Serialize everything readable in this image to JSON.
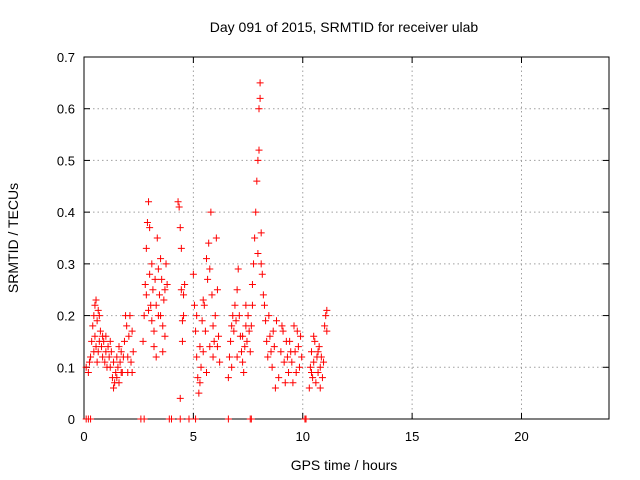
{
  "chart_data": {
    "type": "scatter",
    "title": "Day 091 of 2015, SRMTID for receiver ulab",
    "xlabel": "GPS time / hours",
    "ylabel": "SRMTID / TECUs",
    "xlim": [
      0,
      24
    ],
    "ylim": [
      0,
      0.7
    ],
    "xticks": [
      0,
      5,
      10,
      15,
      20
    ],
    "xtick_labels": [
      "0",
      "5",
      "10",
      "15",
      "20"
    ],
    "yticks": [
      0,
      0.1,
      0.2,
      0.3,
      0.4,
      0.5,
      0.6,
      0.7
    ],
    "ytick_labels": [
      "0",
      "0.1",
      "0.2",
      "0.3",
      "0.4",
      "0.5",
      "0.6",
      "0.7"
    ],
    "grid": true,
    "marker": "+",
    "color": "#ff0000",
    "series": [
      {
        "name": "SRMTID",
        "points": [
          [
            0.1,
            0.0
          ],
          [
            0.2,
            0.0
          ],
          [
            0.3,
            0.0
          ],
          [
            2.6,
            0.0
          ],
          [
            2.75,
            0.0
          ],
          [
            3.9,
            0.0
          ],
          [
            4.0,
            0.0
          ],
          [
            4.4,
            0.0
          ],
          [
            4.8,
            0.0
          ],
          [
            5.1,
            0.0
          ],
          [
            6.6,
            0.0
          ],
          [
            7.6,
            0.0
          ],
          [
            7.65,
            0.0
          ],
          [
            10.1,
            0.0
          ],
          [
            10.15,
            0.0
          ],
          [
            0.1,
            0.1
          ],
          [
            0.2,
            0.09
          ],
          [
            0.3,
            0.12
          ],
          [
            0.35,
            0.15
          ],
          [
            0.4,
            0.18
          ],
          [
            0.45,
            0.2
          ],
          [
            0.5,
            0.22
          ],
          [
            0.5,
            0.16
          ],
          [
            0.55,
            0.14
          ],
          [
            0.6,
            0.19
          ],
          [
            0.6,
            0.11
          ],
          [
            0.65,
            0.13
          ],
          [
            0.7,
            0.15
          ],
          [
            0.7,
            0.2
          ],
          [
            0.75,
            0.17
          ],
          [
            0.8,
            0.14
          ],
          [
            0.85,
            0.12
          ],
          [
            0.9,
            0.15
          ],
          [
            0.95,
            0.11
          ],
          [
            1.0,
            0.13
          ],
          [
            1.0,
            0.16
          ],
          [
            1.05,
            0.1
          ],
          [
            1.1,
            0.14
          ],
          [
            1.15,
            0.12
          ],
          [
            1.2,
            0.1
          ],
          [
            1.25,
            0.13
          ],
          [
            1.3,
            0.08
          ],
          [
            1.35,
            0.11
          ],
          [
            1.4,
            0.07
          ],
          [
            1.45,
            0.09
          ],
          [
            1.5,
            0.12
          ],
          [
            1.55,
            0.1
          ],
          [
            1.6,
            0.14
          ],
          [
            1.65,
            0.11
          ],
          [
            1.7,
            0.13
          ],
          [
            1.75,
            0.09
          ],
          [
            1.8,
            0.12
          ],
          [
            1.85,
            0.15
          ],
          [
            1.9,
            0.2
          ],
          [
            1.95,
            0.18
          ],
          [
            2.0,
            0.12
          ],
          [
            2.05,
            0.16
          ],
          [
            2.1,
            0.2
          ],
          [
            2.15,
            0.11
          ],
          [
            2.2,
            0.09
          ],
          [
            2.25,
            0.13
          ],
          [
            1.35,
            0.06
          ],
          [
            1.5,
            0.08
          ],
          [
            1.7,
            0.09
          ],
          [
            0.55,
            0.23
          ],
          [
            0.65,
            0.21
          ],
          [
            2.7,
            0.15
          ],
          [
            2.75,
            0.2
          ],
          [
            2.8,
            0.26
          ],
          [
            2.85,
            0.33
          ],
          [
            2.9,
            0.38
          ],
          [
            2.95,
            0.42
          ],
          [
            3.0,
            0.37
          ],
          [
            3.0,
            0.28
          ],
          [
            3.05,
            0.22
          ],
          [
            3.1,
            0.3
          ],
          [
            3.1,
            0.19
          ],
          [
            3.15,
            0.25
          ],
          [
            3.2,
            0.17
          ],
          [
            3.25,
            0.27
          ],
          [
            3.3,
            0.22
          ],
          [
            3.35,
            0.35
          ],
          [
            3.4,
            0.29
          ],
          [
            3.45,
            0.24
          ],
          [
            3.5,
            0.31
          ],
          [
            3.5,
            0.2
          ],
          [
            3.55,
            0.27
          ],
          [
            3.6,
            0.18
          ],
          [
            3.65,
            0.23
          ],
          [
            3.7,
            0.16
          ],
          [
            3.75,
            0.3
          ],
          [
            3.8,
            0.26
          ],
          [
            2.85,
            0.24
          ],
          [
            2.95,
            0.21
          ],
          [
            3.2,
            0.14
          ],
          [
            3.6,
            0.13
          ],
          [
            3.3,
            0.12
          ],
          [
            4.3,
            0.42
          ],
          [
            4.35,
            0.41
          ],
          [
            4.4,
            0.37
          ],
          [
            4.45,
            0.33
          ],
          [
            4.45,
            0.25
          ],
          [
            4.5,
            0.19
          ],
          [
            4.55,
            0.24
          ],
          [
            4.6,
            0.26
          ],
          [
            4.4,
            0.04
          ],
          [
            4.5,
            0.15
          ],
          [
            5.0,
            0.28
          ],
          [
            5.05,
            0.22
          ],
          [
            5.1,
            0.17
          ],
          [
            5.15,
            0.12
          ],
          [
            5.2,
            0.08
          ],
          [
            5.25,
            0.05
          ],
          [
            5.3,
            0.14
          ],
          [
            5.35,
            0.1
          ],
          [
            5.4,
            0.19
          ],
          [
            5.45,
            0.13
          ],
          [
            5.5,
            0.22
          ],
          [
            5.55,
            0.17
          ],
          [
            5.6,
            0.31
          ],
          [
            5.65,
            0.27
          ],
          [
            5.7,
            0.34
          ],
          [
            5.75,
            0.29
          ],
          [
            5.8,
            0.4
          ],
          [
            5.85,
            0.24
          ],
          [
            5.9,
            0.18
          ],
          [
            5.95,
            0.15
          ],
          [
            6.0,
            0.2
          ],
          [
            6.05,
            0.35
          ],
          [
            6.1,
            0.25
          ],
          [
            6.15,
            0.16
          ],
          [
            6.2,
            0.11
          ],
          [
            5.3,
            0.07
          ],
          [
            5.6,
            0.09
          ],
          [
            5.9,
            0.12
          ],
          [
            5.45,
            0.23
          ],
          [
            6.6,
            0.08
          ],
          [
            6.65,
            0.12
          ],
          [
            6.7,
            0.15
          ],
          [
            6.75,
            0.18
          ],
          [
            6.8,
            0.2
          ],
          [
            6.85,
            0.17
          ],
          [
            6.9,
            0.22
          ],
          [
            6.95,
            0.19
          ],
          [
            7.0,
            0.25
          ],
          [
            7.05,
            0.29
          ],
          [
            7.1,
            0.2
          ],
          [
            7.15,
            0.16
          ],
          [
            7.2,
            0.13
          ],
          [
            7.25,
            0.11
          ],
          [
            7.3,
            0.09
          ],
          [
            7.35,
            0.14
          ],
          [
            7.4,
            0.18
          ],
          [
            7.45,
            0.15
          ],
          [
            7.5,
            0.2
          ],
          [
            7.55,
            0.17
          ],
          [
            6.75,
            0.1
          ],
          [
            7.0,
            0.12
          ],
          [
            7.25,
            0.16
          ],
          [
            7.6,
            0.13
          ],
          [
            7.65,
            0.18
          ],
          [
            7.7,
            0.26
          ],
          [
            7.75,
            0.3
          ],
          [
            7.8,
            0.35
          ],
          [
            7.85,
            0.4
          ],
          [
            7.9,
            0.46
          ],
          [
            7.95,
            0.5
          ],
          [
            8.0,
            0.52
          ],
          [
            8.0,
            0.6
          ],
          [
            8.05,
            0.62
          ],
          [
            8.05,
            0.65
          ],
          [
            8.1,
            0.36
          ],
          [
            8.15,
            0.28
          ],
          [
            8.2,
            0.24
          ],
          [
            8.25,
            0.22
          ],
          [
            8.3,
            0.19
          ],
          [
            7.95,
            0.32
          ],
          [
            8.1,
            0.3
          ],
          [
            8.4,
            0.12
          ],
          [
            8.5,
            0.16
          ],
          [
            8.6,
            0.1
          ],
          [
            8.7,
            0.14
          ],
          [
            8.8,
            0.19
          ],
          [
            8.9,
            0.08
          ],
          [
            9.0,
            0.13
          ],
          [
            9.1,
            0.17
          ],
          [
            9.2,
            0.07
          ],
          [
            9.3,
            0.12
          ],
          [
            9.4,
            0.15
          ],
          [
            9.5,
            0.11
          ],
          [
            9.6,
            0.18
          ],
          [
            9.7,
            0.09
          ],
          [
            9.8,
            0.14
          ],
          [
            9.9,
            0.16
          ],
          [
            8.45,
            0.2
          ],
          [
            8.75,
            0.06
          ],
          [
            9.05,
            0.18
          ],
          [
            9.35,
            0.09
          ],
          [
            9.65,
            0.13
          ],
          [
            9.85,
            0.1
          ],
          [
            8.55,
            0.13
          ],
          [
            9.25,
            0.15
          ],
          [
            9.55,
            0.07
          ],
          [
            9.75,
            0.17
          ],
          [
            10.3,
            0.06
          ],
          [
            10.35,
            0.1
          ],
          [
            10.4,
            0.13
          ],
          [
            10.45,
            0.08
          ],
          [
            10.5,
            0.11
          ],
          [
            10.55,
            0.15
          ],
          [
            10.6,
            0.07
          ],
          [
            10.65,
            0.12
          ],
          [
            10.7,
            0.09
          ],
          [
            10.75,
            0.14
          ],
          [
            10.8,
            0.1
          ],
          [
            10.85,
            0.12
          ],
          [
            10.9,
            0.08
          ],
          [
            10.95,
            0.11
          ],
          [
            11.0,
            0.18
          ],
          [
            11.05,
            0.2
          ],
          [
            11.1,
            0.21
          ],
          [
            11.1,
            0.17
          ],
          [
            10.5,
            0.16
          ],
          [
            10.8,
            0.06
          ],
          [
            0.25,
            0.11
          ],
          [
            0.45,
            0.13
          ],
          [
            0.85,
            0.16
          ],
          [
            1.2,
            0.15
          ],
          [
            1.6,
            0.07
          ],
          [
            2.0,
            0.09
          ],
          [
            2.2,
            0.17
          ],
          [
            3.4,
            0.2
          ],
          [
            3.7,
            0.25
          ],
          [
            4.55,
            0.2
          ],
          [
            5.15,
            0.2
          ],
          [
            5.75,
            0.14
          ],
          [
            6.1,
            0.14
          ],
          [
            7.4,
            0.22
          ],
          [
            7.7,
            0.22
          ],
          [
            8.35,
            0.15
          ],
          [
            8.65,
            0.17
          ],
          [
            9.15,
            0.11
          ],
          [
            9.45,
            0.13
          ],
          [
            9.95,
            0.12
          ],
          [
            10.4,
            0.09
          ],
          [
            10.7,
            0.13
          ]
        ]
      }
    ]
  }
}
